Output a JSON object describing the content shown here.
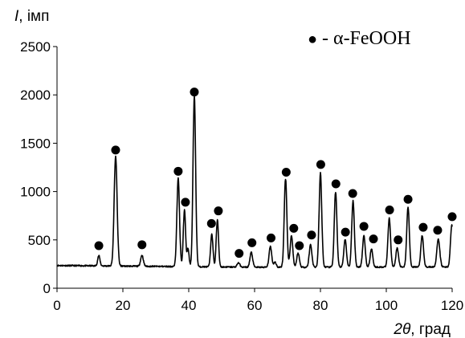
{
  "chart_data": {
    "type": "line",
    "ylabel_symbol": "I",
    "ylabel_unit": ", імп",
    "xlabel_symbol": "2θ",
    "xlabel_unit": ", град",
    "xlim": [
      0,
      120
    ],
    "ylim": [
      0,
      2500
    ],
    "x_ticks": [
      0,
      20,
      40,
      60,
      80,
      100,
      120
    ],
    "y_ticks": [
      0,
      500,
      1000,
      1500,
      2000,
      2500
    ],
    "legend": {
      "marker": "●",
      "label": " - α-FeOOH",
      "position": "top-right"
    },
    "line_color": "#000000",
    "baseline": 235,
    "peaks": [
      {
        "x": 12.7,
        "y": 340,
        "w": 0.35
      },
      {
        "x": 17.8,
        "y": 1370,
        "w": 0.45
      },
      {
        "x": 25.8,
        "y": 350,
        "w": 0.4
      },
      {
        "x": 36.8,
        "y": 1150,
        "w": 0.4
      },
      {
        "x": 38.7,
        "y": 820,
        "w": 0.35
      },
      {
        "x": 39.8,
        "y": 420,
        "w": 0.3
      },
      {
        "x": 41.7,
        "y": 2000,
        "w": 0.4
      },
      {
        "x": 47.0,
        "y": 580,
        "w": 0.35
      },
      {
        "x": 48.7,
        "y": 720,
        "w": 0.35
      },
      {
        "x": 55.1,
        "y": 280,
        "w": 0.4
      },
      {
        "x": 59.0,
        "y": 390,
        "w": 0.4
      },
      {
        "x": 64.8,
        "y": 450,
        "w": 0.4
      },
      {
        "x": 66.2,
        "y": 290,
        "w": 0.35
      },
      {
        "x": 69.4,
        "y": 1150,
        "w": 0.4
      },
      {
        "x": 71.2,
        "y": 560,
        "w": 0.4
      },
      {
        "x": 73.2,
        "y": 380,
        "w": 0.4
      },
      {
        "x": 77.0,
        "y": 470,
        "w": 0.4
      },
      {
        "x": 80.0,
        "y": 1210,
        "w": 0.4
      },
      {
        "x": 84.6,
        "y": 1010,
        "w": 0.4
      },
      {
        "x": 87.5,
        "y": 520,
        "w": 0.4
      },
      {
        "x": 89.9,
        "y": 920,
        "w": 0.4
      },
      {
        "x": 93.2,
        "y": 560,
        "w": 0.4
      },
      {
        "x": 95.5,
        "y": 420,
        "w": 0.4
      },
      {
        "x": 100.9,
        "y": 740,
        "w": 0.4
      },
      {
        "x": 103.3,
        "y": 430,
        "w": 0.4
      },
      {
        "x": 106.6,
        "y": 850,
        "w": 0.4
      },
      {
        "x": 110.9,
        "y": 560,
        "w": 0.4
      },
      {
        "x": 115.8,
        "y": 520,
        "w": 0.45
      },
      {
        "x": 119.9,
        "y": 670,
        "w": 0.4
      }
    ],
    "markers": [
      {
        "x": 12.7,
        "y": 440
      },
      {
        "x": 17.8,
        "y": 1430
      },
      {
        "x": 25.8,
        "y": 450
      },
      {
        "x": 36.8,
        "y": 1210
      },
      {
        "x": 39.0,
        "y": 890
      },
      {
        "x": 41.7,
        "y": 2030
      },
      {
        "x": 46.9,
        "y": 670
      },
      {
        "x": 49.0,
        "y": 800
      },
      {
        "x": 55.3,
        "y": 360
      },
      {
        "x": 59.2,
        "y": 470
      },
      {
        "x": 65.0,
        "y": 520
      },
      {
        "x": 69.6,
        "y": 1200
      },
      {
        "x": 71.9,
        "y": 620
      },
      {
        "x": 73.6,
        "y": 440
      },
      {
        "x": 77.3,
        "y": 550
      },
      {
        "x": 80.1,
        "y": 1280
      },
      {
        "x": 84.7,
        "y": 1080
      },
      {
        "x": 87.6,
        "y": 580
      },
      {
        "x": 89.8,
        "y": 980
      },
      {
        "x": 93.2,
        "y": 640
      },
      {
        "x": 96.1,
        "y": 510
      },
      {
        "x": 101.0,
        "y": 810
      },
      {
        "x": 103.6,
        "y": 500
      },
      {
        "x": 106.6,
        "y": 920
      },
      {
        "x": 111.2,
        "y": 630
      },
      {
        "x": 115.6,
        "y": 600
      },
      {
        "x": 120.0,
        "y": 740
      }
    ]
  }
}
